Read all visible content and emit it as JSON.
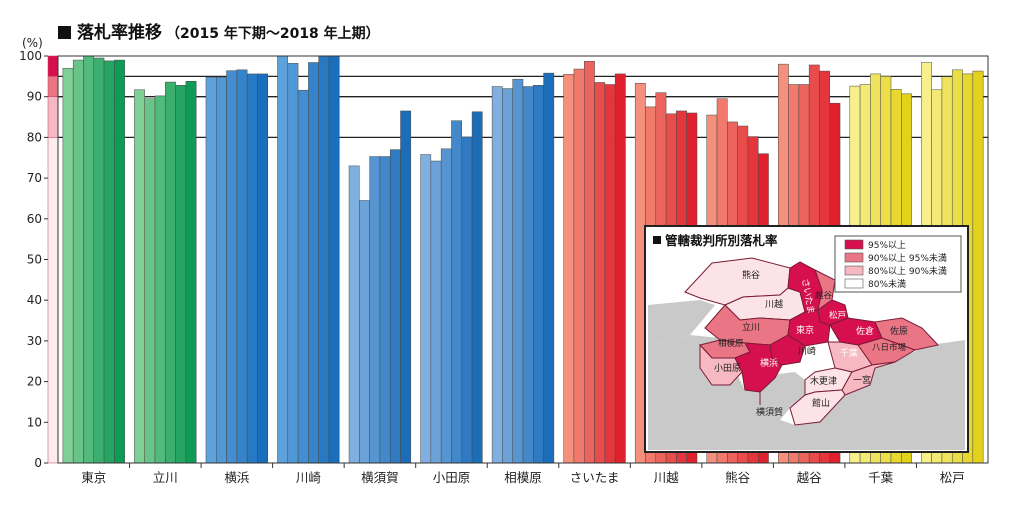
{
  "header": {
    "title": "落札率推移",
    "period": "（2015 年下期～2018 年上期）"
  },
  "chart_data": {
    "type": "bar",
    "title": "落札率推移",
    "subtitle": "（2015 年下期～2018 年上期）",
    "ylabel": "(%)",
    "ylim": [
      0,
      100
    ],
    "yticks": [
      0,
      10,
      20,
      30,
      40,
      50,
      60,
      70,
      80,
      90,
      100
    ],
    "reference_lines": [
      80,
      90,
      95
    ],
    "band_legend": [
      {
        "range": [
          95,
          100
        ],
        "color": "#d6104f"
      },
      {
        "range": [
          90,
          95
        ],
        "color": "#e97585"
      },
      {
        "range": [
          80,
          90
        ],
        "color": "#f6b9c1"
      },
      {
        "range": [
          0,
          80
        ],
        "color": "#fdecef"
      }
    ],
    "groups": [
      {
        "name": "東京",
        "values": [
          97,
          99,
          100,
          99.5,
          98.8,
          99
        ]
      },
      {
        "name": "立川",
        "values": [
          91.7,
          89.5,
          90.2,
          93.6,
          92.8,
          93.8
        ]
      },
      {
        "name": "横浜",
        "values": [
          94.8,
          94.8,
          96.4,
          96.6,
          95.6,
          95.6
        ]
      },
      {
        "name": "川崎",
        "values": [
          100,
          98.2,
          91.6,
          98.4,
          100,
          100
        ]
      },
      {
        "name": "横須賀",
        "values": [
          73,
          64.5,
          75.3,
          75.3,
          77,
          86.5
        ]
      },
      {
        "name": "小田原",
        "values": [
          75.8,
          74.2,
          77.2,
          84.1,
          80.1,
          86.3
        ]
      },
      {
        "name": "相模原",
        "values": [
          92.5,
          92,
          94.3,
          92.5,
          92.8,
          95.8
        ]
      },
      {
        "name": "さいたま",
        "values": [
          95.5,
          96.8,
          98.7,
          93.5,
          93,
          95.6
        ]
      },
      {
        "name": "川越",
        "values": [
          93.3,
          87.5,
          91,
          85.8,
          86.5,
          86
        ]
      },
      {
        "name": "熊谷",
        "values": [
          85.5,
          89.5,
          83.8,
          82.8,
          80.2,
          76
        ]
      },
      {
        "name": "越谷",
        "values": [
          98,
          93,
          93,
          97.8,
          96.3,
          88.4
        ]
      },
      {
        "name": "千葉",
        "values": [
          92.6,
          93,
          95.6,
          95,
          91.8,
          90.7
        ]
      },
      {
        "name": "松戸",
        "values": [
          98.4,
          91.7,
          94.9,
          96.6,
          95.6,
          96.3
        ]
      }
    ],
    "group_colors": [
      {
        "light": "#7fcf97",
        "dark": "#0f9a55"
      },
      {
        "light": "#7fcf97",
        "dark": "#0f9a55"
      },
      {
        "light": "#5ea2dc",
        "dark": "#1a6fbd"
      },
      {
        "light": "#5ea2dc",
        "dark": "#1a6fbd"
      },
      {
        "light": "#7fb0e0",
        "dark": "#1b6db8"
      },
      {
        "light": "#7fb0e0",
        "dark": "#1b6db8"
      },
      {
        "light": "#7fb0e0",
        "dark": "#1b6db8"
      },
      {
        "light": "#f5907d",
        "dark": "#e0202c"
      },
      {
        "light": "#f5907d",
        "dark": "#e0202c"
      },
      {
        "light": "#f5907d",
        "dark": "#e0202c"
      },
      {
        "light": "#f5907d",
        "dark": "#e0202c"
      },
      {
        "light": "#f7ef8a",
        "dark": "#e3d21a"
      },
      {
        "light": "#f7ef8a",
        "dark": "#e3d21a"
      }
    ],
    "legend": "none",
    "grid": false
  },
  "inset": {
    "title": "管轄裁判所別落札率",
    "legend": [
      {
        "label": "95%以上",
        "color": "#d6104f"
      },
      {
        "label": "90%以上 95%未満",
        "color": "#e97585"
      },
      {
        "label": "80%以上 90%未満",
        "color": "#f6b9c1"
      },
      {
        "label": "80%未満",
        "color": "#ffffff"
      }
    ],
    "regions": [
      {
        "label": "熊谷"
      },
      {
        "label": "さいたま"
      },
      {
        "label": "越谷"
      },
      {
        "label": "川越"
      },
      {
        "label": "松戸"
      },
      {
        "label": "立川"
      },
      {
        "label": "東京"
      },
      {
        "label": "佐倉"
      },
      {
        "label": "佐原"
      },
      {
        "label": "相模原"
      },
      {
        "label": "川崎"
      },
      {
        "label": "八日市場"
      },
      {
        "label": "千葉"
      },
      {
        "label": "小田原"
      },
      {
        "label": "横浜"
      },
      {
        "label": "木更津"
      },
      {
        "label": "一宮"
      },
      {
        "label": "館山"
      },
      {
        "label": "横須賀"
      }
    ],
    "colors": {
      "sea": "#c9c9c9",
      "land": "#ffffff",
      "outline": "#7a1c36"
    }
  }
}
